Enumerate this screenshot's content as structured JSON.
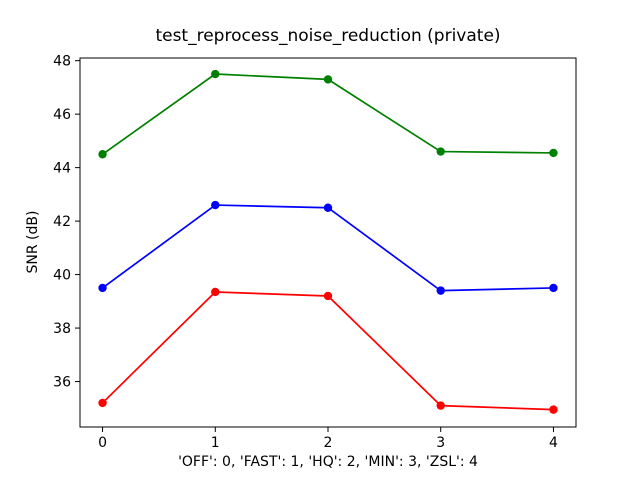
{
  "chart_data": {
    "type": "line",
    "title": "test_reprocess_noise_reduction (private)",
    "xlabel": "'OFF': 0, 'FAST': 1, 'HQ': 2, 'MIN': 3, 'ZSL': 4",
    "ylabel": "SNR (dB)",
    "x": [
      0,
      1,
      2,
      3,
      4
    ],
    "x_tick_labels": [
      "0",
      "1",
      "2",
      "3",
      "4"
    ],
    "y_ticks": [
      36,
      38,
      40,
      42,
      44,
      46,
      48
    ],
    "y_tick_labels": [
      "36",
      "38",
      "40",
      "42",
      "44",
      "46",
      "48"
    ],
    "xlim": [
      -0.2,
      4.2
    ],
    "ylim": [
      34.3,
      48.1
    ],
    "grid": false,
    "legend_position": "none",
    "marker": "o",
    "x_value_meanings": {
      "OFF": 0,
      "FAST": 1,
      "HQ": 2,
      "MIN": 3,
      "ZSL": 4
    },
    "series": [
      {
        "name": "green-series",
        "color": "#008000",
        "values": [
          44.5,
          47.5,
          47.3,
          44.6,
          44.55
        ]
      },
      {
        "name": "blue-series",
        "color": "#0000ff",
        "values": [
          39.5,
          42.6,
          42.5,
          39.4,
          39.5
        ]
      },
      {
        "name": "red-series",
        "color": "#ff0000",
        "values": [
          35.2,
          39.35,
          39.2,
          35.1,
          34.95
        ]
      }
    ],
    "colors": {
      "spine": "#000000",
      "text": "#000000",
      "background": "#ffffff"
    }
  }
}
